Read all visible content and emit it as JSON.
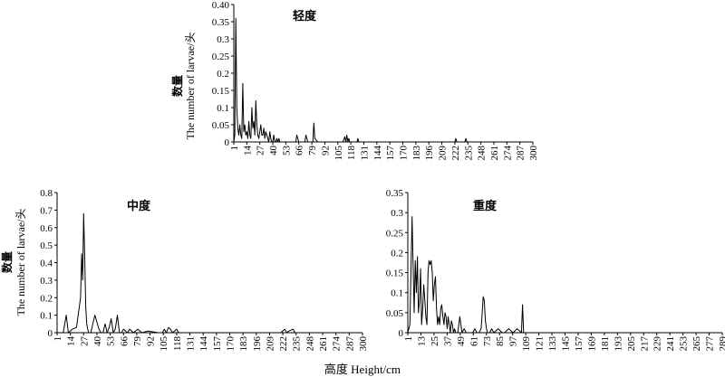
{
  "figure": {
    "shared_xlabel": "高度 Height/cm"
  },
  "chart_data": [
    {
      "type": "line",
      "title": "轻度",
      "ylabel_cn": "数量",
      "ylabel_en": "The number of larvae/头",
      "ylim": [
        0,
        0.4
      ],
      "yticks": [
        "0",
        "0.05",
        "0.1",
        "0.15",
        "0.2",
        "0.25",
        "0.3",
        "0.35",
        "0.40"
      ],
      "xlim": [
        1,
        300
      ],
      "xticks": [
        "1",
        "14",
        "27",
        "40",
        "53",
        "66",
        "79",
        "92",
        "105",
        "118",
        "131",
        "144",
        "157",
        "170",
        "183",
        "196",
        "209",
        "222",
        "235",
        "248",
        "261",
        "274",
        "287",
        "300"
      ],
      "grid": false,
      "series": [
        {
          "x": [
            1,
            2,
            3,
            4,
            5,
            6,
            7,
            8,
            9,
            10,
            11,
            12,
            13,
            14,
            15,
            16,
            17,
            18,
            19,
            20,
            21,
            22,
            23,
            24,
            25,
            26,
            27,
            28,
            29,
            30,
            31,
            32,
            33,
            34,
            35,
            36,
            37,
            38,
            39,
            40,
            41,
            42,
            43,
            44,
            45,
            46,
            47,
            48,
            50,
            52,
            54,
            60,
            63,
            64,
            66,
            68,
            70,
            72,
            73,
            75,
            78,
            80,
            81,
            82,
            85,
            90,
            100,
            110,
            112,
            113,
            114,
            115,
            116,
            117,
            118,
            120,
            124,
            125,
            126,
            130,
            150,
            200,
            222,
            223,
            224,
            226,
            228,
            230,
            232,
            233,
            234,
            236,
            300
          ],
          "y": [
            0,
            0.02,
            0.36,
            0.1,
            0.04,
            0.02,
            0.05,
            0.02,
            0.01,
            0.17,
            0.03,
            0.05,
            0.02,
            0.03,
            0.01,
            0.06,
            0.02,
            0.01,
            0.1,
            0.04,
            0.06,
            0.02,
            0.12,
            0.05,
            0.02,
            0.01,
            0.03,
            0.05,
            0.02,
            0.02,
            0.04,
            0.01,
            0.03,
            0.02,
            0.01,
            0.0,
            0.03,
            0.01,
            0.0,
            0.0,
            0.02,
            0.0,
            0.0,
            0.01,
            0.0,
            0.01,
            0.0,
            0.0,
            0.0,
            0.0,
            0.0,
            0.0,
            0.0,
            0.02,
            0.0,
            0.0,
            0.0,
            0.0,
            0.02,
            0.0,
            0.0,
            0.0,
            0.055,
            0.01,
            0.0,
            0.0,
            0.0,
            0.0,
            0.015,
            0.0,
            0.02,
            0.0,
            0.01,
            0.0,
            0.0,
            0.0,
            0.0,
            0.01,
            0.0,
            0.0,
            0.0,
            0.0,
            0.0,
            0.01,
            0.0,
            0.0,
            0.0,
            0.0,
            0.0,
            0.01,
            0.0,
            0.0,
            0.0
          ]
        }
      ]
    },
    {
      "type": "line",
      "title": "中度",
      "ylabel_cn": "数量",
      "ylabel_en": "The number of larvae/头",
      "ylim": [
        0,
        0.8
      ],
      "yticks": [
        "0",
        "0.1",
        "0.2",
        "0.3",
        "0.4",
        "0.5",
        "0.6",
        "0.7",
        "0.8"
      ],
      "xlim": [
        1,
        300
      ],
      "xticks": [
        "1",
        "14",
        "27",
        "40",
        "53",
        "66",
        "79",
        "92",
        "105",
        "118",
        "131",
        "144",
        "157",
        "170",
        "183",
        "196",
        "209",
        "222",
        "235",
        "248",
        "261",
        "274",
        "287",
        "300"
      ],
      "grid": false,
      "series": [
        {
          "x": [
            1,
            7,
            10,
            12,
            16,
            20,
            24,
            25,
            26,
            27,
            28,
            29,
            30,
            31,
            32,
            34,
            36,
            38,
            40,
            42,
            44,
            46,
            48,
            50,
            52,
            54,
            56,
            58,
            60,
            62,
            64,
            66,
            70,
            72,
            76,
            80,
            84,
            90,
            100,
            104,
            106,
            108,
            110,
            112,
            114,
            116,
            118,
            120,
            140,
            160,
            180,
            200,
            220,
            224,
            226,
            228,
            232,
            234,
            236,
            300
          ],
          "y": [
            0,
            0.0,
            0.1,
            0.0,
            0.02,
            0.03,
            0.2,
            0.45,
            0.3,
            0.68,
            0.45,
            0.15,
            0.05,
            0.02,
            0.0,
            0.0,
            0.05,
            0.1,
            0.06,
            0.02,
            0.0,
            0.0,
            0.05,
            0.0,
            0.03,
            0.08,
            0.0,
            0.02,
            0.1,
            0.0,
            0.0,
            0.02,
            0.0,
            0.02,
            0.0,
            0.02,
            0.0,
            0.01,
            0.0,
            0.0,
            0.02,
            0.0,
            0.03,
            0.02,
            0.0,
            0.01,
            0.02,
            0.0,
            0.0,
            0.0,
            0.0,
            0.0,
            0.0,
            0.02,
            0.0,
            0.01,
            0.02,
            0.0,
            0.0,
            0.0
          ]
        }
      ]
    },
    {
      "type": "line",
      "title": "重度",
      "ylabel_cn": "",
      "ylabel_en": "",
      "ylim": [
        0,
        0.35
      ],
      "yticks": [
        "0",
        "0.05",
        "0.1",
        "0.15",
        "0.2",
        "0.25",
        "0.3",
        "0.35"
      ],
      "xlim": [
        1,
        297
      ],
      "xticks": [
        "1",
        "13",
        "25",
        "37",
        "49",
        "61",
        "73",
        "85",
        "97",
        "109",
        "121",
        "133",
        "145",
        "157",
        "169",
        "181",
        "193",
        "205",
        "217",
        "229",
        "241",
        "253",
        "265",
        "277",
        "289"
      ],
      "grid": false,
      "series": [
        {
          "x": [
            1,
            3,
            5,
            7,
            8,
            9,
            10,
            11,
            12,
            13,
            14,
            15,
            16,
            17,
            18,
            19,
            20,
            21,
            22,
            23,
            24,
            25,
            26,
            27,
            28,
            29,
            30,
            31,
            32,
            33,
            34,
            35,
            36,
            37,
            38,
            39,
            40,
            41,
            42,
            43,
            44,
            45,
            46,
            47,
            48,
            50,
            52,
            54,
            56,
            58,
            60,
            62,
            64,
            66,
            68,
            70,
            71,
            72,
            73,
            74,
            75,
            76,
            78,
            80,
            82,
            86,
            90,
            92,
            96,
            100,
            104,
            108,
            109,
            110,
            112,
            120,
            150,
            200,
            297
          ],
          "y": [
            0,
            0.02,
            0.29,
            0.05,
            0.18,
            0.1,
            0.19,
            0.05,
            0.08,
            0.16,
            0.02,
            0.06,
            0.12,
            0.08,
            0.04,
            0.02,
            0.15,
            0.18,
            0.17,
            0.18,
            0.15,
            0.08,
            0.12,
            0.14,
            0.06,
            0.02,
            0.04,
            0.02,
            0.06,
            0.07,
            0.04,
            0.02,
            0.05,
            0.04,
            0.01,
            0.04,
            0.02,
            0.0,
            0.03,
            0.02,
            0.0,
            0.01,
            0.0,
            0.0,
            0.0,
            0.04,
            0.0,
            0.01,
            0.0,
            0.0,
            0.0,
            0.0,
            0.01,
            0.0,
            0.0,
            0.01,
            0.05,
            0.09,
            0.08,
            0.03,
            0.01,
            0.0,
            0.0,
            0.01,
            0.0,
            0.01,
            0.0,
            0.0,
            0.01,
            0.0,
            0.01,
            0.0,
            0.07,
            0.0,
            0.0,
            0.0,
            0.0,
            0.0,
            0.0
          ]
        }
      ]
    }
  ]
}
